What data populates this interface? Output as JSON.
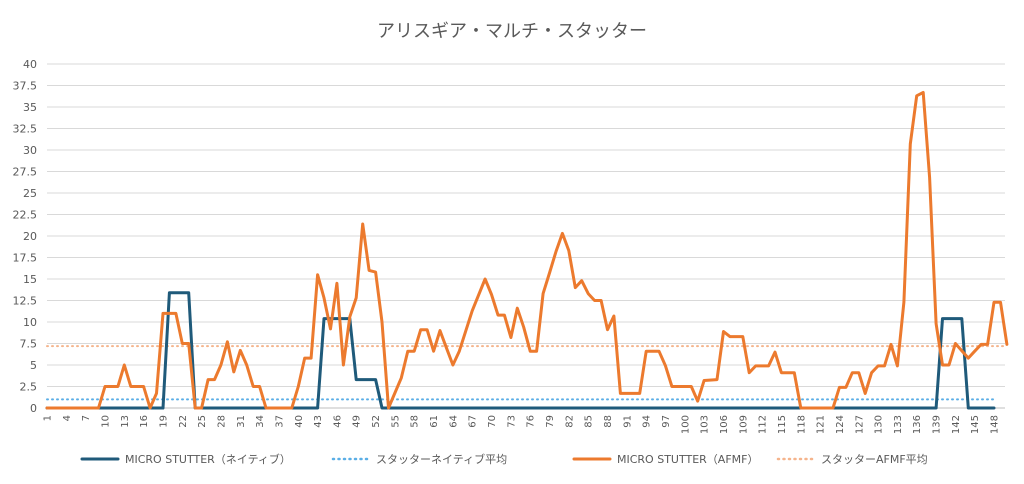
{
  "chart_data": {
    "type": "line",
    "title": "アリスギア・マルチ・スタッター",
    "xlabel": "",
    "ylabel": "",
    "ylim": [
      0,
      40
    ],
    "y_ticks": [
      "0",
      "2.5",
      "5",
      "7.5",
      "10",
      "12.5",
      "15",
      "17.5",
      "20",
      "22.5",
      "25",
      "27.5",
      "30",
      "32.5",
      "35",
      "37.5",
      "40"
    ],
    "x_range": [
      1,
      148
    ],
    "x_tick_step": 3,
    "grid": true,
    "legend_position": "bottom",
    "colors": {
      "native": "#1f5a7a",
      "native_avg": "#5aaee6",
      "afmf": "#ec7a2e",
      "afmf_avg": "#f5b48c",
      "grid": "#d9d9d9",
      "axis": "#bfbfbf",
      "text": "#595959"
    },
    "series": [
      {
        "name": "MICRO STUTTER（ネイティブ）",
        "style": "solid",
        "points": [
          [
            1,
            0
          ],
          [
            18,
            0
          ],
          [
            19,
            0
          ],
          [
            20,
            13.4
          ],
          [
            23,
            13.4
          ],
          [
            24,
            0
          ],
          [
            43,
            0
          ],
          [
            44,
            10.4
          ],
          [
            48,
            10.4
          ],
          [
            49,
            3.3
          ],
          [
            52,
            3.3
          ],
          [
            53,
            0
          ],
          [
            138,
            0
          ],
          [
            139,
            0
          ],
          [
            140,
            10.4
          ],
          [
            143,
            10.4
          ],
          [
            144,
            0
          ],
          [
            148,
            0
          ]
        ]
      },
      {
        "name": "スタッターネイティブ平均",
        "style": "dotted",
        "points": [
          [
            1,
            1.0
          ],
          [
            148,
            1.0
          ]
        ]
      },
      {
        "name": "MICRO STUTTER（AFMF）",
        "style": "solid",
        "points": [
          [
            1,
            0
          ],
          [
            9,
            0
          ],
          [
            10,
            2.5
          ],
          [
            12,
            2.5
          ],
          [
            13,
            5
          ],
          [
            14,
            2.5
          ],
          [
            16,
            2.5
          ],
          [
            17,
            0
          ],
          [
            18,
            1.7
          ],
          [
            19,
            11
          ],
          [
            21,
            11
          ],
          [
            22,
            7.5
          ],
          [
            23,
            7.5
          ],
          [
            24,
            0
          ],
          [
            25,
            0
          ],
          [
            26,
            3.3
          ],
          [
            27,
            3.3
          ],
          [
            28,
            5
          ],
          [
            29,
            7.7
          ],
          [
            30,
            4.2
          ],
          [
            31,
            6.7
          ],
          [
            32,
            5
          ],
          [
            33,
            2.5
          ],
          [
            34,
            2.5
          ],
          [
            35,
            0
          ],
          [
            39,
            0
          ],
          [
            40,
            2.5
          ],
          [
            41,
            5.8
          ],
          [
            42,
            5.8
          ],
          [
            43,
            15.5
          ],
          [
            44,
            12.8
          ],
          [
            45,
            9.2
          ],
          [
            46,
            14.5
          ],
          [
            47,
            5
          ],
          [
            48,
            10.6
          ],
          [
            49,
            12.8
          ],
          [
            50,
            21.4
          ],
          [
            51,
            16
          ],
          [
            52,
            15.8
          ],
          [
            53,
            10
          ],
          [
            54,
            0
          ],
          [
            56,
            3.5
          ],
          [
            57,
            6.6
          ],
          [
            58,
            6.6
          ],
          [
            59,
            9.1
          ],
          [
            60,
            9.1
          ],
          [
            61,
            6.6
          ],
          [
            62,
            9
          ],
          [
            63,
            7
          ],
          [
            64,
            5
          ],
          [
            65,
            6.6
          ],
          [
            67,
            11.3
          ],
          [
            69,
            15
          ],
          [
            70,
            13.2
          ],
          [
            71,
            10.8
          ],
          [
            72,
            10.8
          ],
          [
            73,
            8.2
          ],
          [
            74,
            11.6
          ],
          [
            75,
            9.4
          ],
          [
            76,
            6.6
          ],
          [
            77,
            6.6
          ],
          [
            78,
            13.3
          ],
          [
            79,
            15.7
          ],
          [
            80,
            18.2
          ],
          [
            81,
            20.3
          ],
          [
            82,
            18.3
          ],
          [
            83,
            14
          ],
          [
            84,
            14.8
          ],
          [
            85,
            13.3
          ],
          [
            86,
            12.5
          ],
          [
            87,
            12.5
          ],
          [
            88,
            9.1
          ],
          [
            89,
            10.7
          ],
          [
            90,
            1.7
          ],
          [
            92,
            1.7
          ],
          [
            93,
            1.7
          ],
          [
            94,
            6.6
          ],
          [
            96,
            6.6
          ],
          [
            97,
            4.9
          ],
          [
            98,
            2.5
          ],
          [
            101,
            2.5
          ],
          [
            102,
            0.8
          ],
          [
            103,
            3.2
          ],
          [
            105,
            3.3
          ],
          [
            106,
            8.9
          ],
          [
            107,
            8.3
          ],
          [
            109,
            8.3
          ],
          [
            110,
            4.1
          ],
          [
            111,
            4.9
          ],
          [
            113,
            4.9
          ],
          [
            114,
            6.5
          ],
          [
            115,
            4.1
          ],
          [
            117,
            4.1
          ],
          [
            118,
            0
          ],
          [
            123,
            0
          ],
          [
            124,
            2.4
          ],
          [
            125,
            2.4
          ],
          [
            126,
            4.1
          ],
          [
            127,
            4.1
          ],
          [
            128,
            1.7
          ],
          [
            129,
            4.1
          ],
          [
            130,
            4.9
          ],
          [
            131,
            4.9
          ],
          [
            132,
            7.4
          ],
          [
            133,
            4.9
          ],
          [
            134,
            12.3
          ],
          [
            135,
            30.7
          ],
          [
            136,
            36.3
          ],
          [
            137,
            36.7
          ],
          [
            138,
            26.8
          ],
          [
            139,
            9.8
          ],
          [
            140,
            5
          ],
          [
            141,
            5
          ],
          [
            142,
            7.5
          ],
          [
            144,
            5.8
          ],
          [
            145,
            6.6
          ],
          [
            146,
            7.4
          ],
          [
            147,
            7.4
          ],
          [
            148,
            12.3
          ],
          [
            149,
            12.3
          ],
          [
            150,
            7.4
          ]
        ]
      },
      {
        "name": "スタッターAFMF平均",
        "style": "dotted",
        "points": [
          [
            1,
            7.2
          ],
          [
            150,
            7.2
          ]
        ]
      }
    ]
  }
}
